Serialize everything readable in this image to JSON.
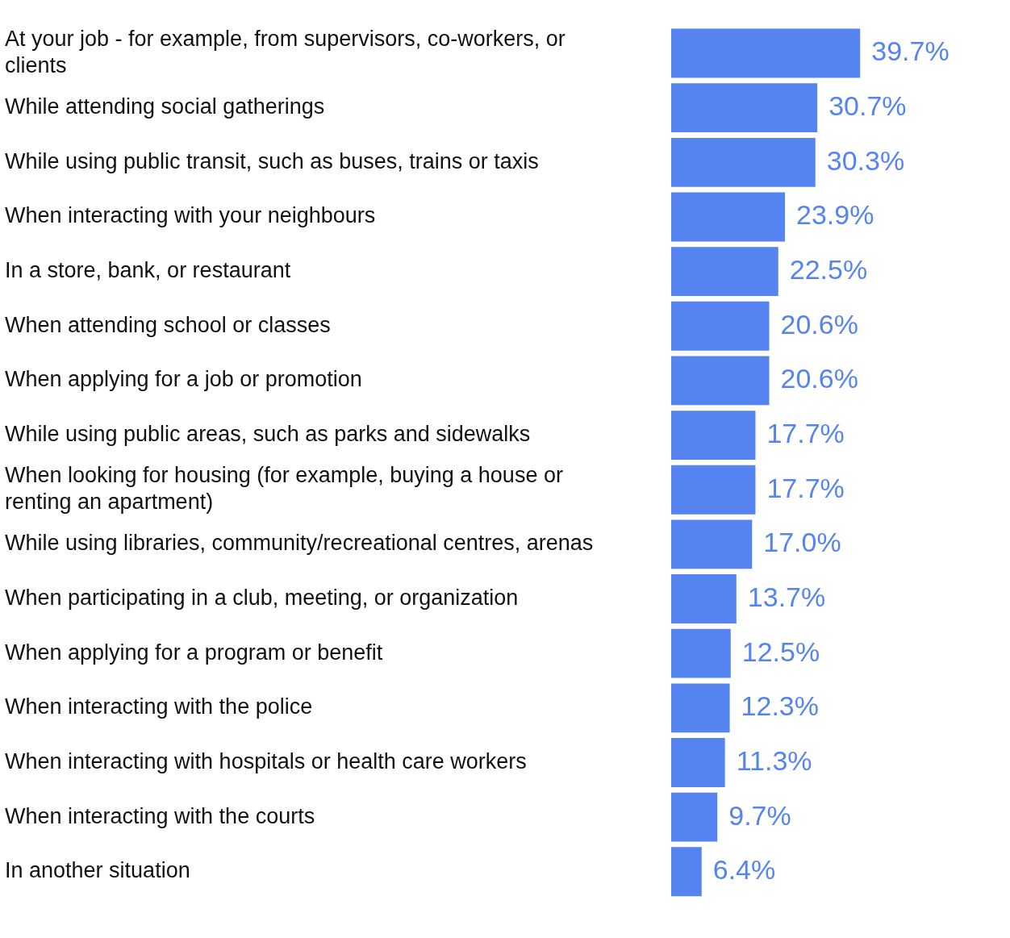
{
  "chart_data": {
    "type": "bar",
    "orientation": "horizontal",
    "categories": [
      "At your job - for example, from supervisors, co-workers, or clients",
      "While attending social gatherings",
      "While using public transit, such as buses, trains or taxis",
      "When interacting with your neighbours",
      "In a store, bank, or restaurant",
      "When attending school or classes",
      "When applying for a job or promotion",
      "While using public areas, such as parks and sidewalks",
      "When looking for housing (for example, buying a house or renting an apartment)",
      "While using libraries, community/recreational centres, arenas",
      "When participating in a club, meeting, or organization",
      "When applying for a program or benefit",
      "When interacting with the police",
      "When interacting with hospitals or health care workers",
      "When interacting with the courts",
      "In another situation"
    ],
    "values": [
      39.7,
      30.7,
      30.3,
      23.9,
      22.5,
      20.6,
      20.6,
      17.7,
      17.7,
      17.0,
      13.7,
      12.5,
      12.3,
      11.3,
      9.7,
      6.4
    ],
    "value_labels": [
      "39.7%",
      "30.7%",
      "30.3%",
      "23.9%",
      "22.5%",
      "20.6%",
      "20.6%",
      "17.7%",
      "17.7%",
      "17.0%",
      "13.7%",
      "12.5%",
      "12.3%",
      "11.3%",
      "9.7%",
      "6.4%"
    ],
    "color": "#5584f0",
    "grid": false,
    "legend": false,
    "tick_labels": "y"
  }
}
